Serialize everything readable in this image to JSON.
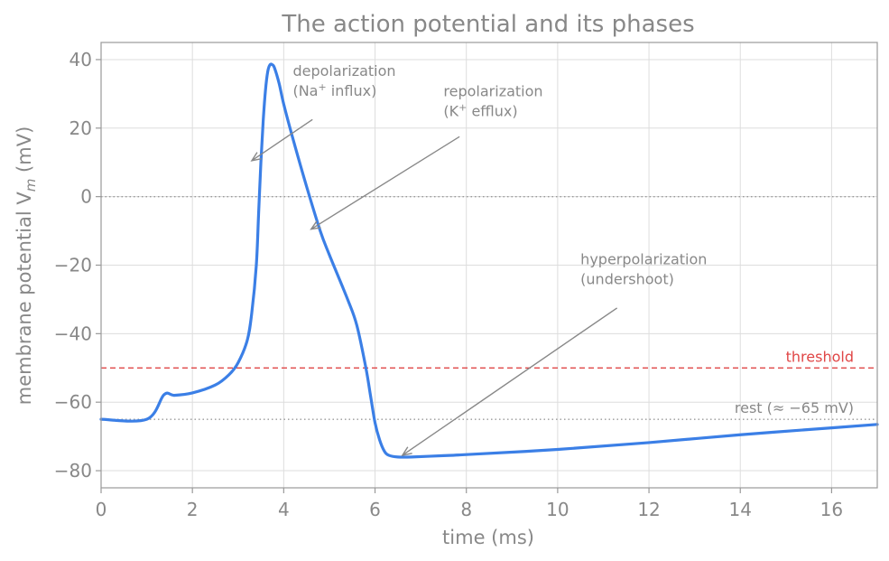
{
  "chart_data": {
    "type": "line",
    "title": "The action potential and its phases",
    "xlabel": "time  (ms)",
    "ylabel": "membrane potential  V",
    "ylabel_sub": "m",
    "ylabel_unit": " (mV)",
    "xlim": [
      0,
      17
    ],
    "ylim": [
      -85,
      45
    ],
    "xticks": [
      0,
      2,
      4,
      6,
      8,
      10,
      12,
      14,
      16
    ],
    "yticks": [
      -80,
      -60,
      -40,
      -20,
      0,
      20,
      40
    ],
    "grid": true,
    "line_color": "#3b7fe6",
    "series": [
      {
        "x": [
          0,
          1.0,
          1.38,
          1.6,
          2.0,
          2.5,
          2.8,
          3.0,
          3.2,
          3.3,
          3.4,
          3.45,
          3.5,
          3.55,
          3.6,
          3.65,
          3.7,
          3.75,
          3.8,
          3.9,
          4.0,
          4.2,
          4.5,
          4.8,
          5.0,
          5.4,
          5.6,
          5.8,
          5.9,
          6.0,
          6.1,
          6.2,
          6.3,
          6.5,
          6.8,
          7.5,
          8.0,
          10.0,
          12.0,
          14.0,
          16.0,
          17.0
        ],
        "y": [
          -65,
          -65,
          -57.8,
          -58,
          -57.3,
          -55,
          -52,
          -48.5,
          -42,
          -34,
          -20,
          -5,
          10,
          22,
          31,
          36.5,
          38.5,
          38.5,
          37.5,
          33,
          27,
          17,
          3,
          -10,
          -17,
          -30,
          -37.5,
          -50,
          -58,
          -66,
          -71,
          -74.2,
          -75.5,
          -76,
          -76,
          -75.6,
          -75.3,
          -73.8,
          -71.8,
          -69.5,
          -67.5,
          -66.5
        ]
      }
    ],
    "reference_lines": [
      {
        "y": 0,
        "style": "dotted",
        "color": "#999999",
        "label": ""
      },
      {
        "y": -50,
        "style": "dashed",
        "color": "#e04646",
        "label": "threshold"
      },
      {
        "y": -65,
        "style": "dotted",
        "color": "#999999",
        "label": "rest (≈ −65 mV)"
      }
    ],
    "annotations": [
      {
        "id": "depol",
        "line1": "depolarization",
        "line2_pre": "(Na",
        "line2_sup": "+",
        "line2_post": " influx)",
        "text_x": 4.2,
        "text_y": 30,
        "tail_x": 4.63,
        "tail_y": 22.5,
        "head_x": 3.3,
        "head_y": 10.5
      },
      {
        "id": "repol",
        "line1": "repolarization",
        "line2_pre": "(K",
        "line2_sup": "+",
        "line2_post": " efflux)",
        "text_x": 7.5,
        "text_y": 24,
        "tail_x": 7.85,
        "tail_y": 17.5,
        "head_x": 4.6,
        "head_y": -9.5
      },
      {
        "id": "hyper",
        "line1": "hyperpolarization",
        "line2_pre": "(undershoot)",
        "line2_sup": "",
        "line2_post": "",
        "text_x": 10.5,
        "text_y": -25,
        "tail_x": 11.3,
        "tail_y": -32.5,
        "head_x": 6.6,
        "head_y": -75.5
      }
    ]
  }
}
